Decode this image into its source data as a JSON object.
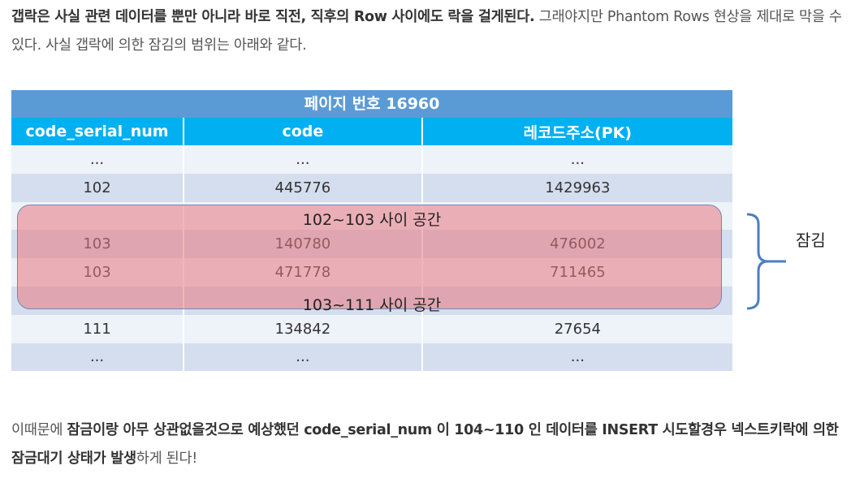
{
  "para1": {
    "bold1": "갭락은 사실 관련 데이터를 뿐만 아니라 바로 직전, 직후의 Row 사이에도 락을 걸게된다.",
    "normal1": " 그래야지만 Phantom Rows 현상을 제대로 막을 수 있다. 사실 갭락에 의한 잠김의 범위는 아래와 같다."
  },
  "table": {
    "title": "페이지 번호 16960",
    "columns": [
      "code_serial_num",
      "code",
      "레코드주소(PK)"
    ],
    "rows": [
      [
        "...",
        "...",
        "..."
      ],
      [
        "102",
        "445776",
        "1429963"
      ],
      [
        "",
        "",
        ""
      ],
      [
        "103",
        "140780",
        "476002"
      ],
      [
        "103",
        "471778",
        "711465"
      ],
      [
        "",
        "",
        ""
      ],
      [
        "111",
        "134842",
        "27654"
      ],
      [
        "...",
        "...",
        "..."
      ]
    ],
    "gap1_label": "102~103 사이 공간",
    "gap2_label": "103~111 사이 공간",
    "lock_label": "잠김",
    "colors": {
      "title_bg": "#5b9bd5",
      "header_bg": "#00b0f0",
      "lock_fill": "#e87880",
      "bracket": "#4a7fc1"
    }
  },
  "para2": {
    "normal1": "이때문에 ",
    "bold1": "잠금이랑 아무 상관없을것으로 예상했던 code_serial_num 이 104~110 인 데이터를 INSERT 시도할경우 넥스트키락에 의한 잠금대기 상태가 발생",
    "normal2": "하게 된다!"
  }
}
